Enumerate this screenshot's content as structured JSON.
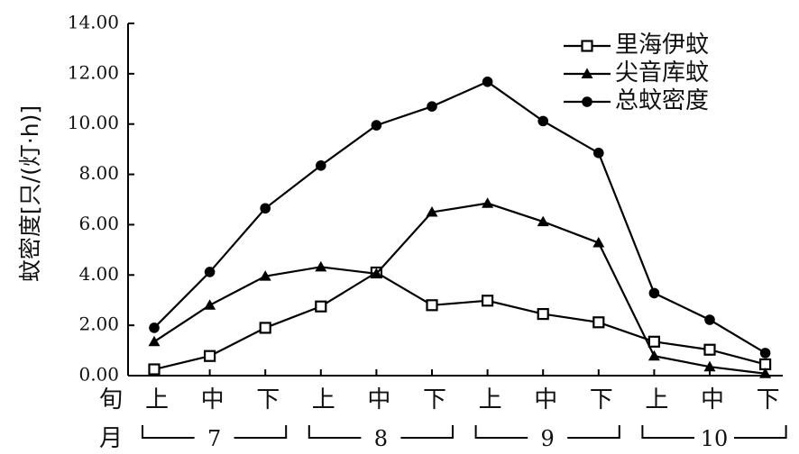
{
  "chart_data": {
    "type": "line",
    "ylabel": "蚊密度[只/(灯·h)]",
    "ylim": [
      0,
      14
    ],
    "yticks": [
      "0.00",
      "2.00",
      "4.00",
      "6.00",
      "8.00",
      "10.00",
      "12.00",
      "14.00"
    ],
    "row_labels": {
      "period": "旬",
      "month": "月"
    },
    "categories": [
      "上",
      "中",
      "下",
      "上",
      "中",
      "下",
      "上",
      "中",
      "下",
      "上",
      "中",
      "下"
    ],
    "months": [
      {
        "label": "7",
        "span": [
          0,
          2
        ]
      },
      {
        "label": "8",
        "span": [
          3,
          5
        ]
      },
      {
        "label": "9",
        "span": [
          6,
          8
        ]
      },
      {
        "label": "10",
        "span": [
          9,
          11
        ]
      }
    ],
    "legend_position": "top-right",
    "grid": false,
    "series": [
      {
        "name": "里海伊蚊",
        "marker": "open-square",
        "values": [
          0.25,
          0.78,
          1.9,
          2.75,
          4.1,
          2.8,
          2.98,
          2.45,
          2.12,
          1.35,
          1.03,
          0.45
        ]
      },
      {
        "name": "尖音库蚊",
        "marker": "filled-triangle",
        "values": [
          1.35,
          2.8,
          3.95,
          4.32,
          4.05,
          6.5,
          6.85,
          6.12,
          5.28,
          0.78,
          0.35,
          0.08
        ]
      },
      {
        "name": "总蚊密度",
        "marker": "filled-circle",
        "values": [
          1.9,
          4.12,
          6.65,
          8.35,
          9.95,
          10.7,
          11.68,
          10.12,
          8.85,
          3.28,
          2.22,
          0.9
        ]
      }
    ]
  }
}
